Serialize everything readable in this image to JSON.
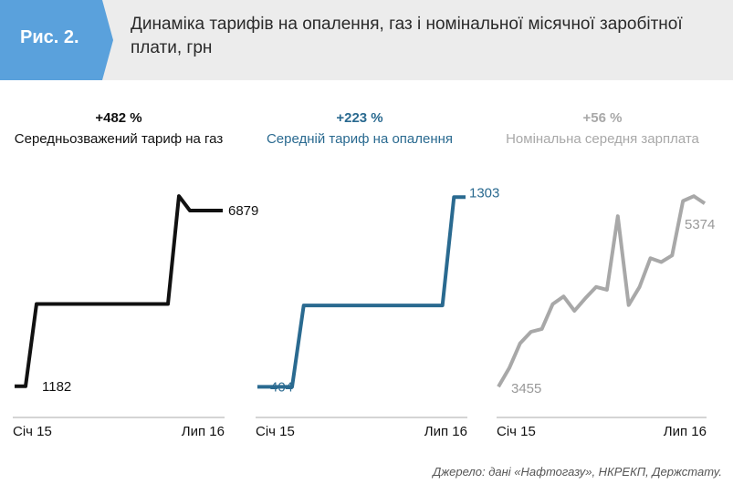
{
  "figure": {
    "label": "Рис. 2.",
    "title": "Динаміка тарифів на опалення, газ і номінальної місячної заробітної плати, грн",
    "source": "Джерело: дані «Нафтогазу», НКРЕКП, Держстату."
  },
  "colors": {
    "badge": "#5aa1dc",
    "gas": "#111111",
    "heating": "#2a6a90",
    "wage": "#a8a8a8"
  },
  "chart_data": [
    {
      "type": "line",
      "title": "Середньозважений тариф на газ",
      "change": "+482 %",
      "color": "#111111",
      "x_labels": [
        "Січ 15",
        "Лип 16"
      ],
      "values": [
        1182,
        1182,
        3850,
        3850,
        3850,
        3850,
        3850,
        3850,
        3850,
        3850,
        3850,
        3850,
        3850,
        3850,
        3850,
        7350,
        6879,
        6879,
        6879,
        6879
      ],
      "start_label": "1182",
      "end_label": "6879",
      "ylim": [
        1000,
        7500
      ]
    },
    {
      "type": "line",
      "title": "Середній тариф на опалення",
      "change": "+223 %",
      "color": "#2a6a90",
      "x_labels": [
        "Січ 15",
        "Лип 16"
      ],
      "values": [
        404,
        404,
        404,
        404,
        790,
        790,
        790,
        790,
        790,
        790,
        790,
        790,
        790,
        790,
        790,
        790,
        790,
        1303,
        1303
      ],
      "start_label": "404",
      "end_label": "1303",
      "ylim": [
        380,
        1330
      ]
    },
    {
      "type": "line",
      "title": "Номінальна середня зарплата",
      "change": "+56 %",
      "color": "#a8a8a8",
      "x_labels": [
        "Січ 15",
        "Лип 16"
      ],
      "values": [
        3455,
        3650,
        3910,
        4030,
        4060,
        4320,
        4400,
        4250,
        4380,
        4500,
        4470,
        5240,
        4310,
        4500,
        4800,
        4760,
        4830,
        5400,
        5450,
        5374
      ],
      "start_label": "3455",
      "end_label": "5374",
      "ylim": [
        3400,
        5500
      ]
    }
  ]
}
